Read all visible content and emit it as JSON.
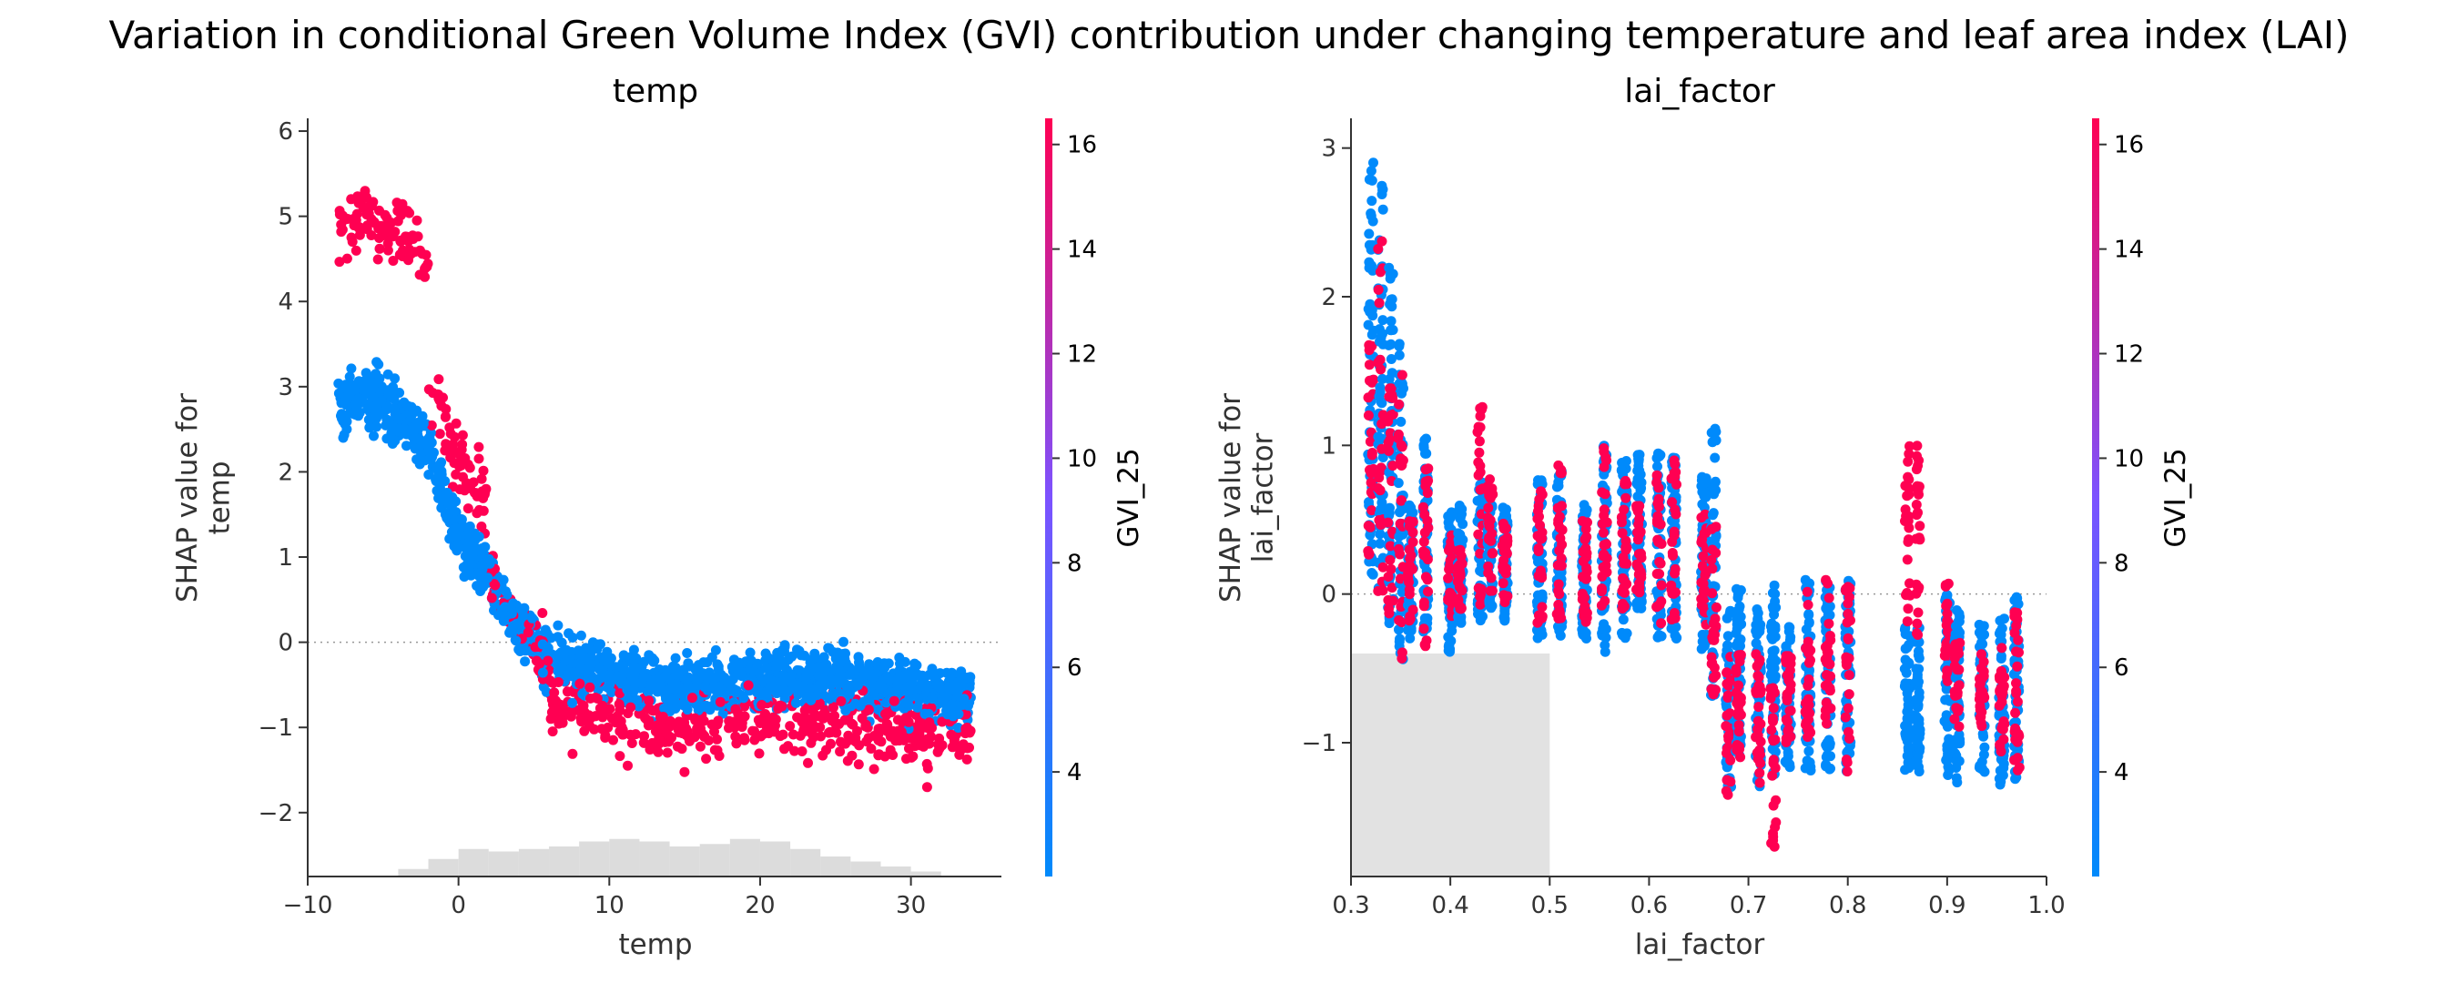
{
  "title": "Variation in conditional Green Volume Index (GVI) contribution under changing temperature and leaf area index (LAI)",
  "colors": {
    "low": "#008afb",
    "mid": "#7c52ff",
    "high": "#ff0052",
    "hist": "#d3d3d3",
    "axis": "#333333",
    "zeroline": "#999999"
  },
  "chart_data": [
    {
      "type": "scatter",
      "title": "temp",
      "xlabel": "temp",
      "ylabel": "SHAP value for\ntemp",
      "xlim": [
        -10,
        36
      ],
      "ylim": [
        -2.75,
        6.15
      ],
      "xticks": [
        -10,
        0,
        10,
        20,
        30
      ],
      "yticks": [
        -2,
        -1,
        0,
        1,
        2,
        3,
        4,
        5,
        6
      ],
      "ytick_labels": [
        "−2",
        "−1",
        "0",
        "1",
        "2",
        "3",
        "4",
        "5",
        "6"
      ],
      "xtick_labels": [
        "−10",
        "0",
        "10",
        "20",
        "30"
      ],
      "color_feature": "GVI_25",
      "color_range": [
        2,
        16.5
      ],
      "colorbar_ticks": [
        4,
        6,
        8,
        10,
        12,
        14,
        16
      ],
      "histogram": {
        "bins": [
          -4,
          -2,
          0,
          2,
          4,
          6,
          8,
          10,
          12,
          14,
          16,
          18,
          20,
          22,
          24,
          26,
          28,
          30
        ],
        "heights": [
          0.15,
          0.35,
          0.55,
          0.5,
          0.55,
          0.6,
          0.7,
          0.75,
          0.7,
          0.6,
          0.65,
          0.75,
          0.7,
          0.55,
          0.4,
          0.3,
          0.2,
          0.1
        ]
      },
      "trend": {
        "x": [
          -8,
          -6,
          -4,
          -2,
          0,
          2,
          4,
          6,
          8,
          10,
          12,
          14,
          16,
          18,
          20,
          22,
          24,
          26,
          28,
          30,
          32,
          34
        ],
        "y": [
          2.8,
          2.9,
          2.7,
          2.3,
          1.2,
          0.8,
          0.2,
          -0.2,
          -0.3,
          -0.4,
          -0.45,
          -0.5,
          -0.5,
          -0.5,
          -0.45,
          -0.45,
          -0.45,
          -0.45,
          -0.5,
          -0.55,
          -0.6,
          -0.6
        ]
      }
    },
    {
      "type": "scatter",
      "title": "lai_factor",
      "xlabel": "lai_factor",
      "ylabel": "SHAP value for\nlai_factor",
      "xlim": [
        0.3,
        1.0
      ],
      "ylim": [
        -1.9,
        3.2
      ],
      "xticks": [
        0.3,
        0.4,
        0.5,
        0.6,
        0.7,
        0.8,
        0.9,
        1.0
      ],
      "xtick_labels": [
        "0.3",
        "0.4",
        "0.5",
        "0.6",
        "0.7",
        "0.8",
        "0.9",
        "1.0"
      ],
      "yticks": [
        -1,
        0,
        1,
        2,
        3
      ],
      "ytick_labels": [
        "−1",
        "0",
        "1",
        "2",
        "3"
      ],
      "color_feature": "GVI_25",
      "color_range": [
        2,
        16.5
      ],
      "colorbar_ticks": [
        4,
        6,
        8,
        10,
        12,
        14,
        16
      ],
      "histogram": {
        "x_range": [
          0.3,
          0.5
        ],
        "top": -0.4
      },
      "columns": [
        {
          "x": 0.32,
          "lo": 0.1,
          "hi": 2.95,
          "red_lo": 0.2,
          "red_hi": 1.7
        },
        {
          "x": 0.33,
          "lo": 0.0,
          "hi": 2.9,
          "red_lo": 0.0,
          "red_hi": 2.4
        },
        {
          "x": 0.34,
          "lo": -0.2,
          "hi": 2.2,
          "red_lo": -0.2,
          "red_hi": 1.4
        },
        {
          "x": 0.35,
          "lo": -0.45,
          "hi": 1.7,
          "red_lo": -0.45,
          "red_hi": 1.5
        },
        {
          "x": 0.36,
          "lo": -0.3,
          "hi": 0.6,
          "red_lo": -0.2,
          "red_hi": 0.5
        },
        {
          "x": 0.375,
          "lo": -0.35,
          "hi": 1.05,
          "red_lo": -0.35,
          "red_hi": 0.9
        },
        {
          "x": 0.4,
          "lo": -0.4,
          "hi": 0.55,
          "red_lo": -0.2,
          "red_hi": 0.4
        },
        {
          "x": 0.41,
          "lo": -0.2,
          "hi": 0.6,
          "red_lo": -0.1,
          "red_hi": 0.3
        },
        {
          "x": 0.43,
          "lo": -0.2,
          "hi": 0.75,
          "red_lo": -0.1,
          "red_hi": 1.3
        },
        {
          "x": 0.44,
          "lo": -0.1,
          "hi": 0.6,
          "red_lo": 0.0,
          "red_hi": 0.8
        },
        {
          "x": 0.455,
          "lo": -0.2,
          "hi": 0.6,
          "red_lo": -0.1,
          "red_hi": 0.5
        },
        {
          "x": 0.49,
          "lo": -0.3,
          "hi": 0.8,
          "red_lo": -0.2,
          "red_hi": 0.7
        },
        {
          "x": 0.51,
          "lo": -0.3,
          "hi": 0.9,
          "red_lo": -0.2,
          "red_hi": 0.9
        },
        {
          "x": 0.535,
          "lo": -0.3,
          "hi": 0.65,
          "red_lo": -0.2,
          "red_hi": 0.5
        },
        {
          "x": 0.555,
          "lo": -0.4,
          "hi": 1.0,
          "red_lo": -0.1,
          "red_hi": 1.0
        },
        {
          "x": 0.575,
          "lo": -0.3,
          "hi": 0.9,
          "red_lo": -0.1,
          "red_hi": 0.8
        },
        {
          "x": 0.59,
          "lo": -0.1,
          "hi": 0.95,
          "red_lo": 0.0,
          "red_hi": 0.6
        },
        {
          "x": 0.61,
          "lo": -0.3,
          "hi": 0.95,
          "red_lo": -0.2,
          "red_hi": 0.8
        },
        {
          "x": 0.625,
          "lo": -0.3,
          "hi": 0.95,
          "red_lo": -0.2,
          "red_hi": 0.95
        },
        {
          "x": 0.655,
          "lo": -0.4,
          "hi": 0.8,
          "red_lo": -0.3,
          "red_hi": 0.6
        },
        {
          "x": 0.665,
          "lo": -0.7,
          "hi": 1.2,
          "red_lo": -0.7,
          "red_hi": 0.5
        },
        {
          "x": 0.68,
          "lo": -1.3,
          "hi": 0.0,
          "red_lo": -1.4,
          "red_hi": -0.4
        },
        {
          "x": 0.69,
          "lo": -1.1,
          "hi": 0.05,
          "red_lo": -1.1,
          "red_hi": -0.4
        },
        {
          "x": 0.71,
          "lo": -1.3,
          "hi": -0.1,
          "red_lo": -1.3,
          "red_hi": -0.4
        },
        {
          "x": 0.725,
          "lo": -1.3,
          "hi": 0.15,
          "red_lo": -1.7,
          "red_hi": -0.6
        },
        {
          "x": 0.74,
          "lo": -1.2,
          "hi": -0.2,
          "red_lo": -1.0,
          "red_hi": -0.4
        },
        {
          "x": 0.76,
          "lo": -1.2,
          "hi": 0.1,
          "red_lo": -1.0,
          "red_hi": 0.1
        },
        {
          "x": 0.78,
          "lo": -1.2,
          "hi": 0.1,
          "red_lo": -0.9,
          "red_hi": 0.1
        },
        {
          "x": 0.8,
          "lo": -1.2,
          "hi": 0.1,
          "red_lo": -1.3,
          "red_hi": 0.1
        },
        {
          "x": 0.86,
          "lo": -1.2,
          "hi": -0.2,
          "red_lo": -0.3,
          "red_hi": 1.05
        },
        {
          "x": 0.87,
          "lo": -1.2,
          "hi": -0.2,
          "red_lo": -0.3,
          "red_hi": 1.0
        },
        {
          "x": 0.9,
          "lo": -1.25,
          "hi": 0.0,
          "red_lo": -0.6,
          "red_hi": 0.1
        },
        {
          "x": 0.91,
          "lo": -1.3,
          "hi": -0.1,
          "red_lo": -0.9,
          "red_hi": -0.3
        },
        {
          "x": 0.935,
          "lo": -1.2,
          "hi": -0.2,
          "red_lo": -0.9,
          "red_hi": -0.4
        },
        {
          "x": 0.955,
          "lo": -1.3,
          "hi": -0.1,
          "red_lo": -1.1,
          "red_hi": -0.3
        },
        {
          "x": 0.97,
          "lo": -1.3,
          "hi": 0.0,
          "red_lo": -1.2,
          "red_hi": -0.1
        }
      ]
    }
  ]
}
